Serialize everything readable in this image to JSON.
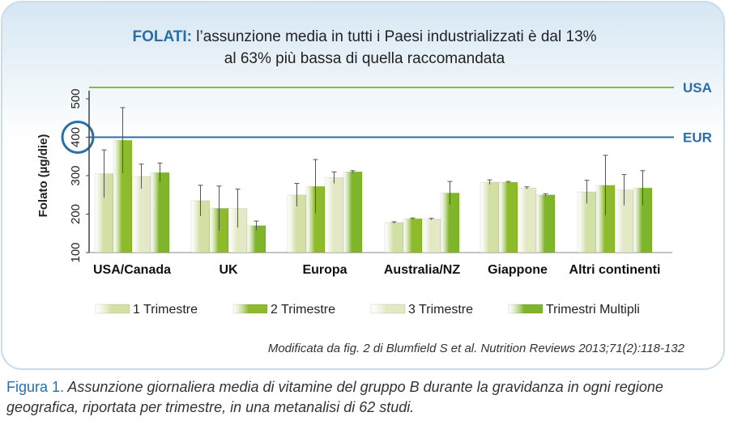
{
  "title": {
    "keyword": "FOLATI:",
    "line1": "l’assunzione media in tutti i Paesi industrializzati è dal 13%",
    "line2": "al 63% più bassa di quella raccomandata"
  },
  "source": "Modificata da fig. 2 di Blumfield S et al. Nutrition Reviews 2013;71(2):118-132",
  "caption": {
    "label": "Figura 1.",
    "text": "Assunzione giornaliera media di vitamine del gruppo B durante la gravidanza in ogni regione geografica, riportata per trimestre, in una metanalisi di 62 studi."
  },
  "colors": {
    "s1": "#d3e0a5",
    "s2": "#8dbb2c",
    "s3": "#e3e8c5",
    "s4": "#7fb52a",
    "usa_line": "#7cbf3a",
    "eur_line": "#2c6ea8",
    "accent": "#2a6ea8"
  },
  "chart_data": {
    "type": "bar",
    "ylabel": "Folato (µg/die)",
    "ylim": [
      100,
      530
    ],
    "yticks": [
      100,
      200,
      300,
      400,
      500
    ],
    "categories": [
      "USA/Canada",
      "UK",
      "Europa",
      "Australia/NZ",
      "Giappone",
      "Altri continenti"
    ],
    "series": [
      {
        "name": "1 Trimestre",
        "values": [
          305,
          235,
          250,
          178,
          283,
          258
        ],
        "errors": [
          62,
          40,
          30,
          2,
          6,
          30
        ]
      },
      {
        "name": "2 Trimestre",
        "values": [
          392,
          215,
          272,
          188,
          283,
          275
        ],
        "errors": [
          85,
          58,
          70,
          2,
          2,
          78
        ]
      },
      {
        "name": "3 Trimestre",
        "values": [
          298,
          215,
          295,
          187,
          268,
          263
        ],
        "errors": [
          32,
          50,
          15,
          2,
          3,
          40
        ]
      },
      {
        "name": "Trimestri Multipli",
        "values": [
          308,
          170,
          310,
          255,
          250,
          268
        ],
        "errors": [
          25,
          12,
          3,
          30,
          3,
          45
        ]
      }
    ],
    "reference_lines": [
      {
        "label": "USA",
        "value": 530
      },
      {
        "label": "EUR",
        "value": 400
      }
    ],
    "highlight_tick": 400
  }
}
